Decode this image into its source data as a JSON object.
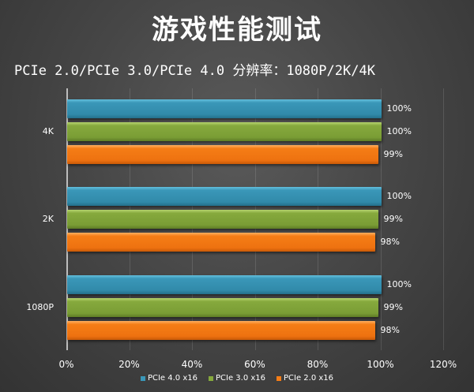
{
  "header": {
    "title": "游戏性能测试",
    "subtitle": "PCIe 2.0/PCIe 3.0/PCIe 4.0  分辨率：1080P/2K/4K"
  },
  "colors": {
    "pcie4": "#3a97b8",
    "pcie3": "#86a93d",
    "pcie2": "#f57d16",
    "background": "#474747"
  },
  "chart_data": {
    "type": "bar",
    "orientation": "horizontal",
    "title": "游戏性能测试",
    "subtitle": "PCIe 2.0/PCIe 3.0/PCIe 4.0  分辨率：1080P/2K/4K",
    "categories": [
      "4K",
      "2K",
      "1080P"
    ],
    "series": [
      {
        "name": "PCIe 4.0 x16",
        "values": [
          100,
          100,
          100
        ],
        "labels": [
          "100%",
          "100%",
          "100%"
        ]
      },
      {
        "name": "PCIe 3.0 x16",
        "values": [
          100,
          99,
          99
        ],
        "labels": [
          "100%",
          "99%",
          "99%"
        ]
      },
      {
        "name": "PCIe 2.0 x16",
        "values": [
          99,
          98,
          98
        ],
        "labels": [
          "99%",
          "98%",
          "98%"
        ]
      }
    ],
    "xlabel": "",
    "ylabel": "",
    "xlim": [
      0,
      120
    ],
    "x_ticks": [
      "0%",
      "20%",
      "40%",
      "60%",
      "80%",
      "100%",
      "120%"
    ],
    "grid": true,
    "legend_position": "bottom"
  }
}
